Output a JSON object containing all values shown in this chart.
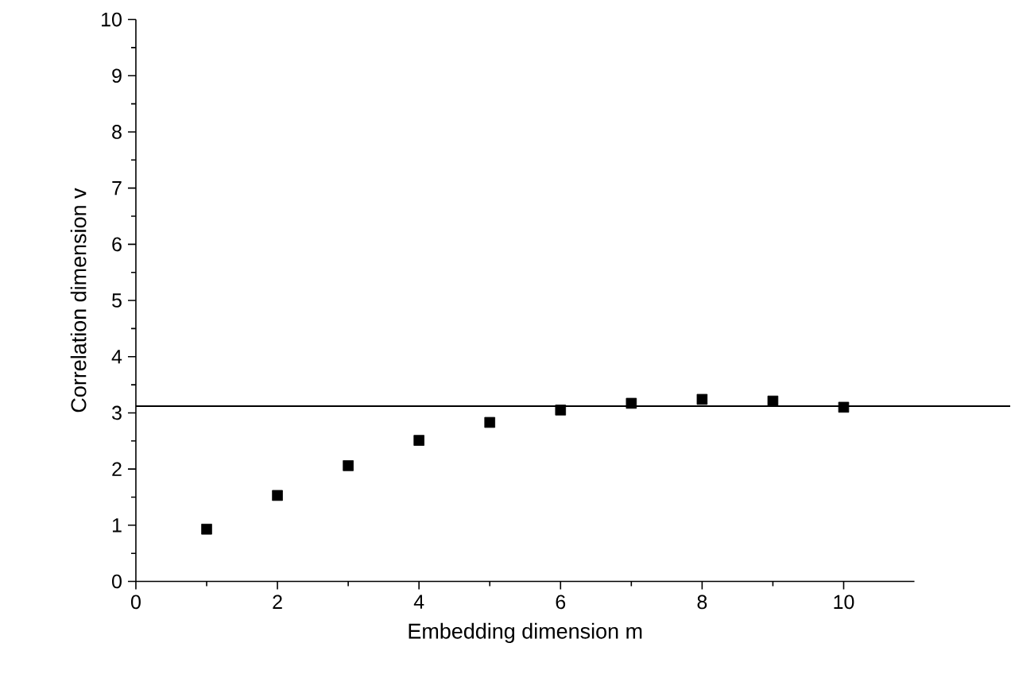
{
  "chart_data": {
    "type": "scatter",
    "xlabel": "Embedding dimension m",
    "ylabel": "Correlation dimension v",
    "x": [
      1,
      2,
      3,
      4,
      5,
      6,
      7,
      8,
      9,
      10
    ],
    "values": [
      0.93,
      1.53,
      2.06,
      2.51,
      2.83,
      3.05,
      3.17,
      3.24,
      3.21,
      3.1
    ],
    "color": "#000000",
    "marker": "square",
    "xlim": [
      0,
      11
    ],
    "xticks": [
      0,
      2,
      4,
      6,
      8,
      10
    ],
    "ylim": [
      0,
      10
    ],
    "yticks": [
      0,
      1,
      2,
      3,
      4,
      5,
      6,
      7,
      8,
      9,
      10
    ],
    "ref_lines": [
      {
        "axis": "y",
        "value": 3.12,
        "color": "#000000"
      }
    ]
  }
}
